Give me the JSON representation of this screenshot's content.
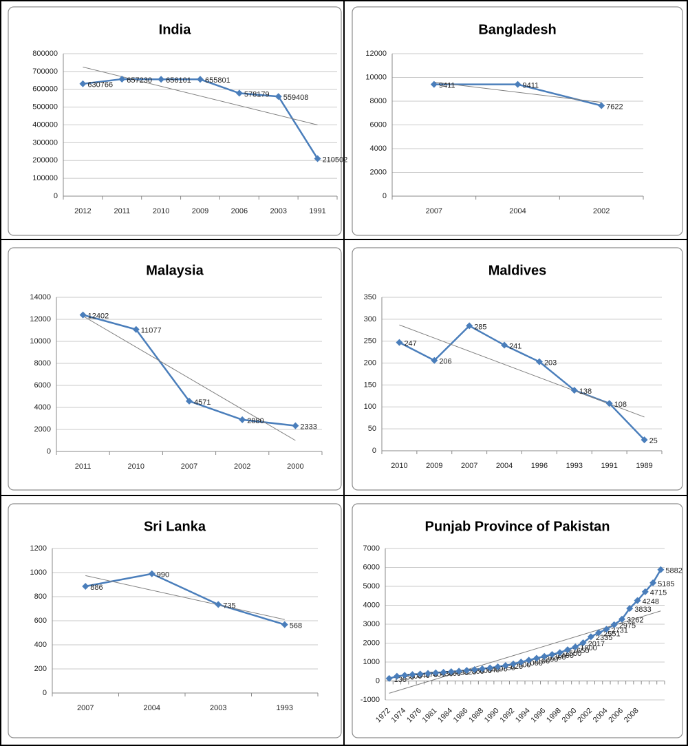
{
  "chart_data": [
    {
      "type": "line",
      "title": "India",
      "categories": [
        "2012",
        "2011",
        "2010",
        "2009",
        "2006",
        "2003",
        "1991"
      ],
      "values": [
        630766,
        657230,
        656101,
        655801,
        578179,
        559408,
        210502
      ],
      "color": "#4a7ebb",
      "trendline": [
        725000,
        400000
      ],
      "trend_color": "#808080",
      "ylim": [
        0,
        800000
      ],
      "yticks": [
        0,
        100000,
        200000,
        300000,
        400000,
        500000,
        600000,
        700000,
        800000
      ],
      "grid": true
    },
    {
      "type": "line",
      "title": "Bangladesh",
      "categories": [
        "2007",
        "2004",
        "2002"
      ],
      "values": [
        9411,
        9411,
        7622
      ],
      "color": "#4a7ebb",
      "trendline": [
        9600,
        7900
      ],
      "trend_color": "#808080",
      "ylim": [
        0,
        12000
      ],
      "yticks": [
        0,
        2000,
        4000,
        6000,
        8000,
        10000,
        12000
      ],
      "grid": true
    },
    {
      "type": "line",
      "title": "Malaysia",
      "categories": [
        "2011",
        "2010",
        "2007",
        "2002",
        "2000"
      ],
      "values": [
        12402,
        11077,
        4571,
        2880,
        2333
      ],
      "color": "#4a7ebb",
      "trendline": [
        12300,
        1000
      ],
      "trend_color": "#808080",
      "ylim": [
        0,
        14000
      ],
      "yticks": [
        0,
        2000,
        4000,
        6000,
        8000,
        10000,
        12000,
        14000
      ],
      "grid": true
    },
    {
      "type": "line",
      "title": "Maldives",
      "categories": [
        "2010",
        "2009",
        "2007",
        "2004",
        "1996",
        "1993",
        "1991",
        "1989"
      ],
      "values": [
        247,
        206,
        285,
        241,
        203,
        138,
        108,
        25
      ],
      "color": "#4a7ebb",
      "trendline": [
        287,
        77
      ],
      "trend_color": "#808080",
      "ylim": [
        0,
        350
      ],
      "yticks": [
        0,
        50,
        100,
        150,
        200,
        250,
        300,
        350
      ],
      "grid": true
    },
    {
      "type": "line",
      "title": "Sri Lanka",
      "categories": [
        "2007",
        "2004",
        "2003",
        "1993"
      ],
      "values": [
        886,
        990,
        735,
        568
      ],
      "color": "#4a7ebb",
      "trendline": [
        975,
        610
      ],
      "trend_color": "#808080",
      "ylim": [
        0,
        1200
      ],
      "yticks": [
        0,
        200,
        400,
        600,
        800,
        1000,
        1200
      ],
      "grid": true
    },
    {
      "type": "line",
      "title": "Punjab Province of Pakistan",
      "categories": [
        "1972",
        null,
        "1974",
        null,
        "1976",
        null,
        "1981",
        null,
        "1984",
        null,
        "1986",
        null,
        "1988",
        null,
        "1990",
        null,
        "1992",
        null,
        "1994",
        null,
        "1996",
        null,
        "1998",
        null,
        "2000",
        null,
        "2002",
        null,
        "2004",
        null,
        "2006",
        null,
        "2008",
        null,
        null,
        null
      ],
      "values": [
        130,
        250,
        300,
        340,
        370,
        400,
        430,
        460,
        490,
        520,
        560,
        600,
        640,
        690,
        750,
        820,
        900,
        1000,
        1100,
        1200,
        1300,
        1400,
        1500,
        1650,
        1800,
        2017,
        2335,
        2551,
        2731,
        2975,
        3262,
        3833,
        4248,
        4715,
        5185,
        5882
      ],
      "color": "#4a7ebb",
      "trendline": [
        -650,
        3700
      ],
      "trend_color": "#808080",
      "ylim": [
        -1000,
        7000
      ],
      "yticks": [
        -1000,
        0,
        1000,
        2000,
        3000,
        4000,
        5000,
        6000,
        7000
      ],
      "grid": true,
      "rotate_x_labels": true
    }
  ]
}
